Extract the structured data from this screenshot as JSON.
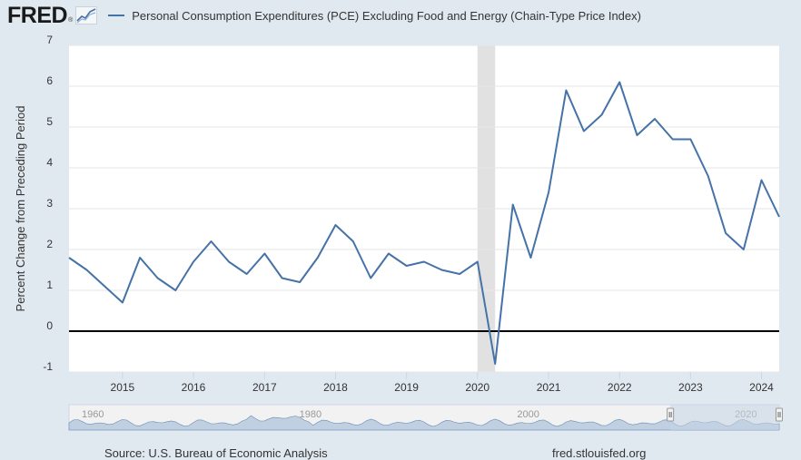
{
  "brand": {
    "logo_text": "FRED",
    "logo_mark": "®",
    "graph_icon": "line-graph-icon"
  },
  "footer": {
    "source": "Source: U.S. Bureau of Economic Analysis",
    "site": "fred.stlouisfed.org"
  },
  "colors": {
    "series": "#4572a7",
    "background": "#e1e9f0",
    "plot_background": "#ffffff",
    "recession": "#e1e1e1",
    "zero_line": "#000000",
    "navigator_fill": "#b5c8de",
    "navigator_selection": "#c4d3e6"
  },
  "chart_data": {
    "type": "line",
    "title": "",
    "ylabel": "Percent Change from Preceding Period",
    "xlabel": "",
    "ylim": [
      -1,
      7
    ],
    "yticks": [
      "7",
      "6",
      "5",
      "4",
      "3",
      "2",
      "1",
      "0",
      "-1"
    ],
    "xticks": [
      "2015",
      "2016",
      "2017",
      "2018",
      "2019",
      "2020",
      "2021",
      "2022",
      "2023",
      "2024"
    ],
    "xlim": [
      "2014-04-01",
      "2024-04-01"
    ],
    "grid": true,
    "legend": "top",
    "recession_band": [
      "2020-01-01",
      "2020-04-01"
    ],
    "series": [
      {
        "name": "Personal Consumption Expenditures (PCE) Excluding Food and Energy (Chain-Type Price Index)",
        "x": [
          "2014-04-01",
          "2014-07-01",
          "2014-10-01",
          "2015-01-01",
          "2015-04-01",
          "2015-07-01",
          "2015-10-01",
          "2016-01-01",
          "2016-04-01",
          "2016-07-01",
          "2016-10-01",
          "2017-01-01",
          "2017-04-01",
          "2017-07-01",
          "2017-10-01",
          "2018-01-01",
          "2018-04-01",
          "2018-07-01",
          "2018-10-01",
          "2019-01-01",
          "2019-04-01",
          "2019-07-01",
          "2019-10-01",
          "2020-01-01",
          "2020-04-01",
          "2020-07-01",
          "2020-10-01",
          "2021-01-01",
          "2021-04-01",
          "2021-07-01",
          "2021-10-01",
          "2022-01-01",
          "2022-04-01",
          "2022-07-01",
          "2022-10-01",
          "2023-01-01",
          "2023-04-01",
          "2023-07-01",
          "2023-10-01",
          "2024-01-01",
          "2024-04-01"
        ],
        "values": [
          1.8,
          1.5,
          1.1,
          0.7,
          1.8,
          1.3,
          1.0,
          1.7,
          2.2,
          1.7,
          1.4,
          1.9,
          1.3,
          1.2,
          1.8,
          2.6,
          2.2,
          1.3,
          1.9,
          1.6,
          1.7,
          1.5,
          1.4,
          1.7,
          -0.8,
          3.1,
          1.8,
          3.4,
          5.9,
          4.9,
          5.3,
          6.1,
          4.8,
          5.2,
          4.7,
          4.7,
          3.8,
          2.4,
          2.0,
          3.7,
          2.8
        ]
      }
    ],
    "navigator": {
      "xticks": [
        "1960",
        "1980",
        "2000",
        "2020"
      ]
    }
  }
}
